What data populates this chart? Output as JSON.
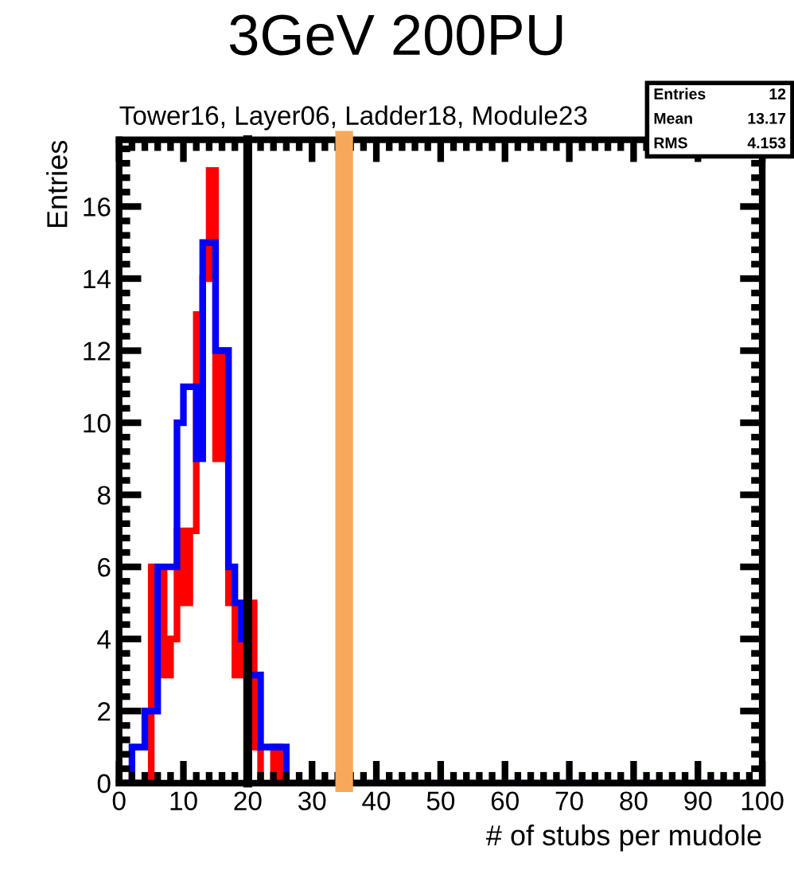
{
  "chart_data": {
    "type": "histogram",
    "title": "3GeV 200PU",
    "subtitle": "Tower16, Layer06, Ladder18, Module23",
    "xlabel": "# of stubs per mudole",
    "ylabel": "Entries",
    "bins": [
      0,
      1,
      2,
      3,
      4,
      5,
      6,
      7,
      8,
      9,
      10,
      11,
      12,
      13,
      14,
      15,
      16,
      17,
      18,
      19,
      20,
      21,
      22,
      23,
      24,
      25,
      26,
      27,
      28,
      29,
      30,
      31,
      32,
      33,
      34,
      35,
      36,
      37,
      38,
      39,
      40,
      41,
      42,
      43,
      44,
      45,
      46,
      47,
      48,
      49,
      50,
      51,
      52,
      53,
      54,
      55,
      56,
      57,
      58,
      59,
      60,
      61,
      62,
      63,
      64,
      65,
      66,
      67,
      68,
      69,
      70,
      71,
      72,
      73,
      74,
      75,
      76,
      77,
      78,
      79,
      80,
      81,
      82,
      83,
      84,
      85,
      86,
      87,
      88,
      89,
      90,
      91,
      92,
      93,
      94,
      95,
      96,
      97,
      98,
      99,
      100
    ],
    "series": [
      {
        "color": "#ff0000",
        "values": [
          0,
          0,
          0,
          0,
          0,
          6,
          6,
          3,
          4,
          7,
          5,
          7,
          13,
          14,
          17,
          9,
          12,
          5,
          3,
          4,
          5,
          1,
          0,
          0,
          1,
          0,
          0,
          0,
          0,
          0,
          0,
          0,
          0,
          0,
          0,
          0,
          0,
          0,
          0,
          0,
          0,
          0,
          0,
          0,
          0,
          0,
          0,
          0,
          0,
          0,
          0,
          0,
          0,
          0,
          0,
          0,
          0,
          0,
          0,
          0,
          0,
          0,
          0,
          0,
          0,
          0,
          0,
          0,
          0,
          0,
          0,
          0,
          0,
          0,
          0,
          0,
          0,
          0,
          0,
          0,
          0,
          0,
          0,
          0,
          0,
          0,
          0,
          0,
          0,
          0,
          0,
          0,
          0,
          0,
          0,
          0,
          0,
          0,
          0,
          0
        ]
      },
      {
        "color": "#0000ff",
        "values": [
          0,
          0,
          1,
          1,
          2,
          2,
          6,
          6,
          6,
          10,
          11,
          11,
          9,
          15,
          15,
          12,
          12,
          6,
          5,
          4,
          3,
          3,
          1,
          1,
          1,
          1,
          0,
          0,
          0,
          0,
          0,
          0,
          0,
          0,
          0,
          0,
          0,
          0,
          0,
          0,
          0,
          0,
          0,
          0,
          0,
          0,
          0,
          0,
          0,
          0,
          0,
          0,
          0,
          0,
          0,
          0,
          0,
          0,
          0,
          0,
          0,
          0,
          0,
          0,
          0,
          0,
          0,
          0,
          0,
          0,
          0,
          0,
          0,
          0,
          0,
          0,
          0,
          0,
          0,
          0,
          0,
          0,
          0,
          0,
          0,
          0,
          0,
          0,
          0,
          0,
          0,
          0,
          0,
          0,
          0,
          0,
          0,
          0,
          0,
          0
        ]
      }
    ],
    "xlim": [
      0,
      100
    ],
    "ylim": [
      0,
      17.85
    ],
    "xticks": [
      0,
      10,
      20,
      30,
      40,
      50,
      60,
      70,
      80,
      90,
      100
    ],
    "yticks": [
      0,
      2,
      4,
      6,
      8,
      10,
      12,
      14,
      16
    ],
    "ref_lines": [
      {
        "axis": "x",
        "value": 20,
        "color": "#000000"
      },
      {
        "axis": "x",
        "value": 35,
        "color": "#f7a85a"
      }
    ],
    "annotations": [
      "Entries 12",
      "Mean 13.17",
      "RMS 4.153"
    ],
    "grid": false,
    "legend": false
  }
}
